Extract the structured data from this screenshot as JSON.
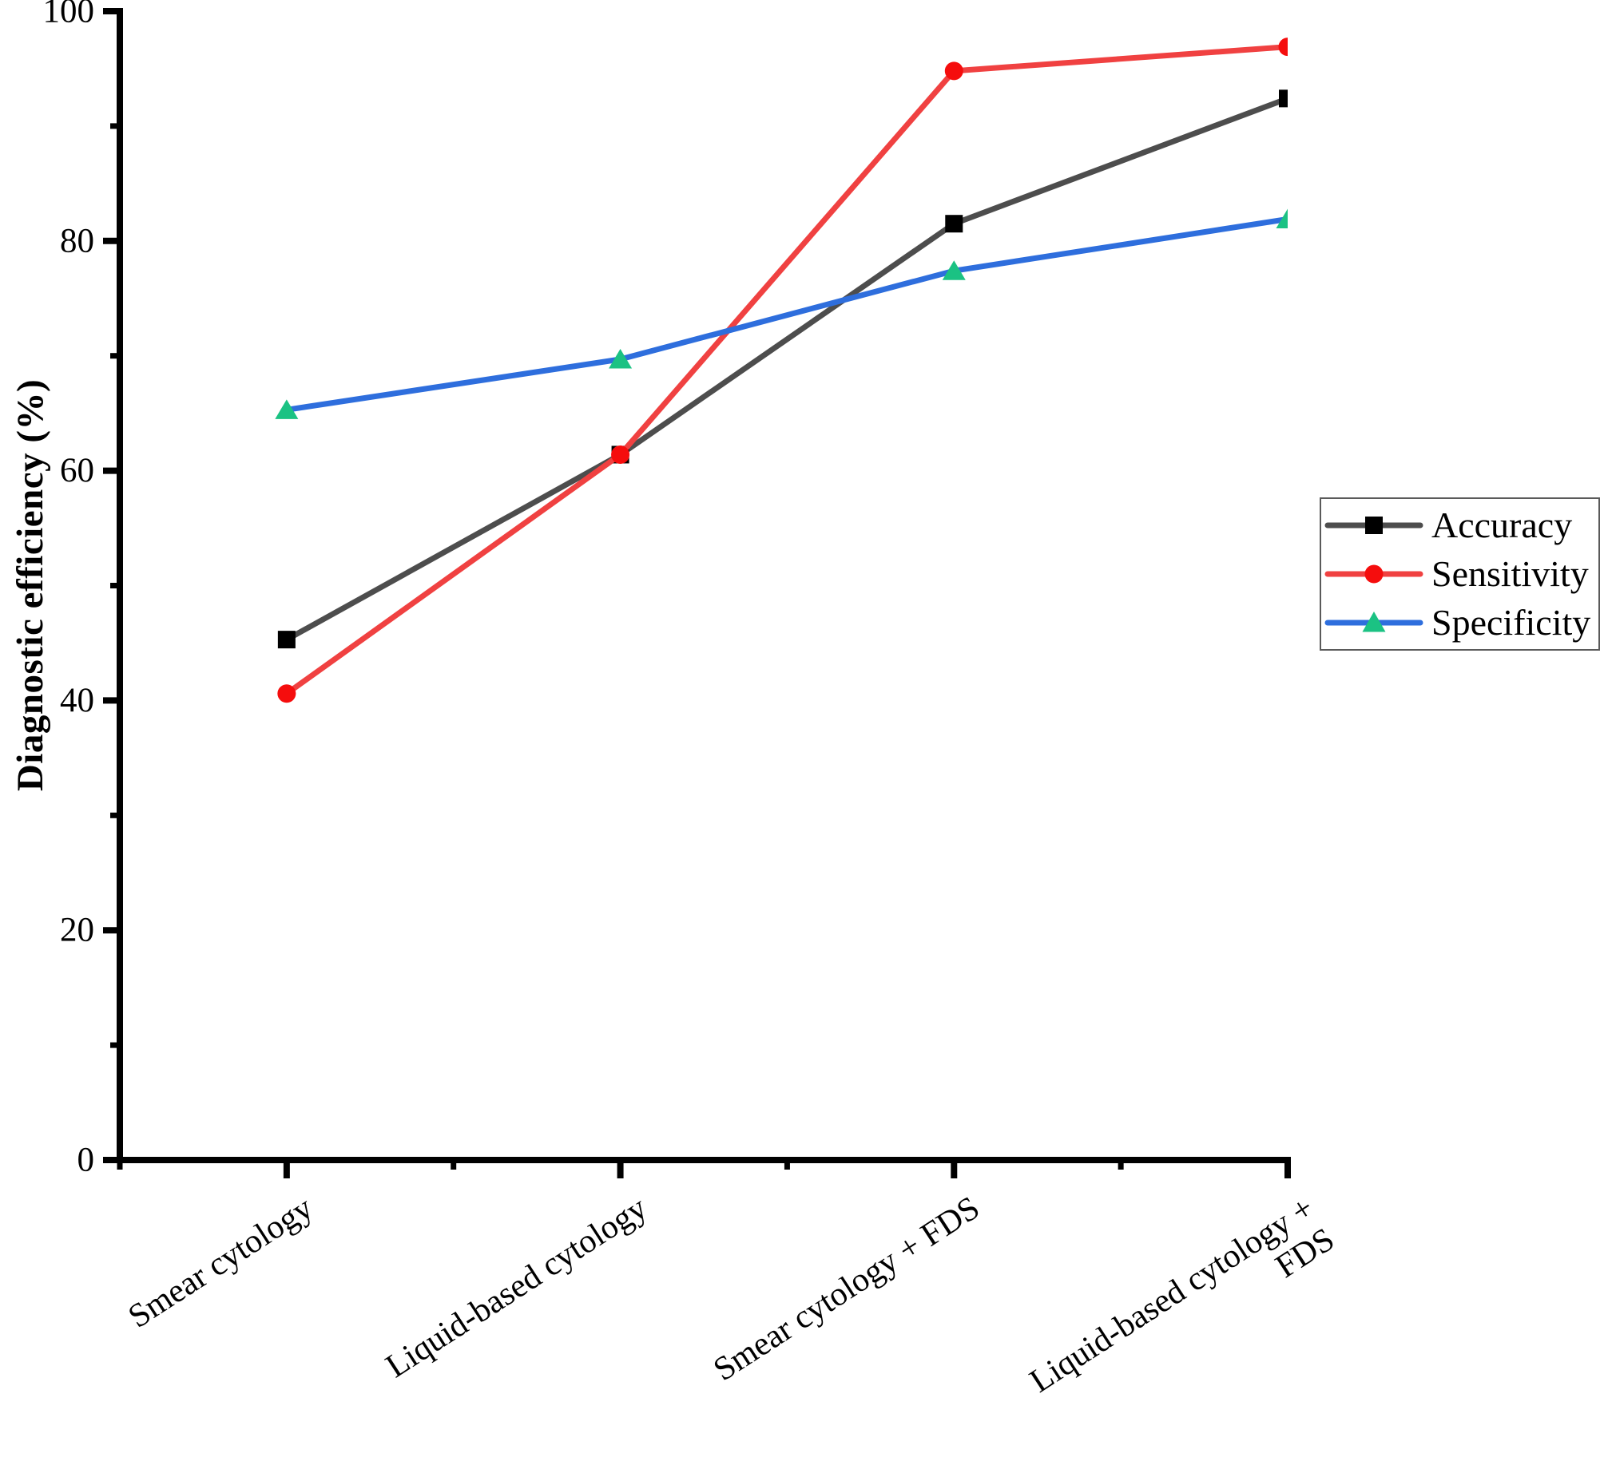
{
  "chart_data": {
    "type": "line",
    "title": "",
    "xlabel": "",
    "ylabel": "Diagnostic efficiency (%)",
    "ylim": [
      0,
      100
    ],
    "y_major_ticks": [
      0,
      20,
      40,
      60,
      80,
      100
    ],
    "y_minor_ticks": [
      10,
      30,
      50,
      70,
      90
    ],
    "grid": "off",
    "legend_position": "right",
    "categories": [
      "Smear cytology",
      "Liquid-based cytology",
      "Smear cytology + FDS",
      "Liquid-based cytology + FDS"
    ],
    "series": [
      {
        "name": "Accuracy",
        "marker": "square",
        "line_color": "#4D4D4D",
        "marker_color": "#000000",
        "values": [
          45.3,
          61.4,
          81.5,
          92.4
        ]
      },
      {
        "name": "Sensitivity",
        "marker": "circle",
        "line_color": "#F04141",
        "marker_color": "#F50D0D",
        "values": [
          40.6,
          61.4,
          94.8,
          96.9
        ]
      },
      {
        "name": "Specificity",
        "marker": "triangle",
        "line_color": "#2E6EDD",
        "marker_color": "#1BC283",
        "values": [
          65.3,
          69.7,
          77.4,
          81.9
        ]
      }
    ],
    "axis_color": "#000000"
  }
}
